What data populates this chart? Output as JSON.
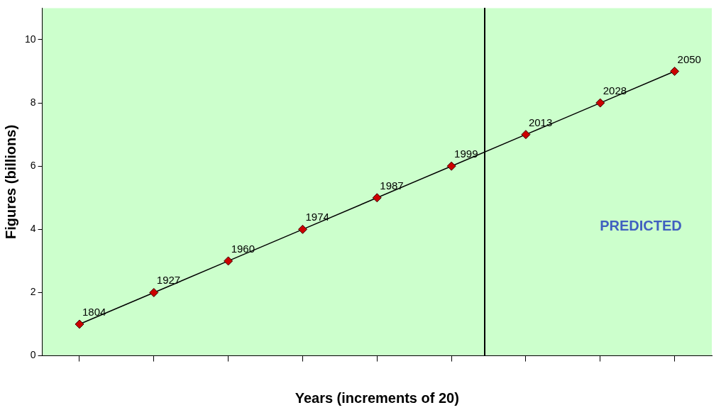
{
  "chart_data": {
    "type": "line",
    "xlabel": "Years (increments of 20)",
    "ylabel": "Figures (billions)",
    "categories": [
      null,
      null,
      null,
      null,
      null,
      null,
      null,
      null,
      null
    ],
    "series": [
      {
        "color": "#cc0000",
        "values": [
          1,
          2,
          3,
          4,
          5,
          6,
          7,
          8,
          9
        ]
      }
    ],
    "ylim": [
      0,
      11
    ],
    "yticks": [
      0,
      2,
      4,
      6,
      8,
      10
    ],
    "grid": false,
    "legend": false,
    "marker": "diamond",
    "line_style": "solid",
    "annotations": [
      "1804",
      "1927",
      "1960",
      "1974",
      "1987",
      "1999",
      "2013",
      "2028",
      "2050",
      "PREDICTED"
    ]
  }
}
